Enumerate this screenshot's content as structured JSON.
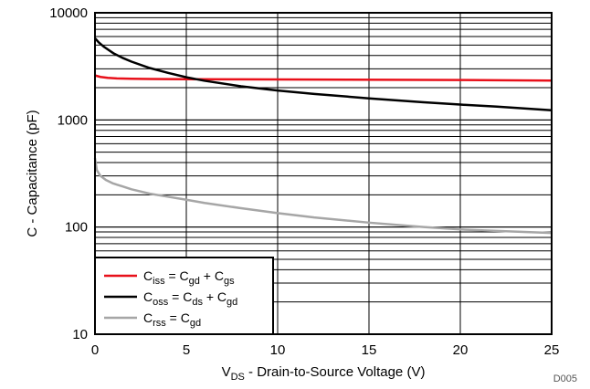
{
  "chart_data": {
    "type": "line",
    "figure_id": "D005",
    "xlabel": {
      "main": "V",
      "sub": "DS",
      "rest": " - Drain-to-Source Voltage (V)"
    },
    "ylabel": "C - Capacitance (pF)",
    "xlim": [
      0,
      25
    ],
    "ylim": [
      10,
      10000
    ],
    "yscale": "log",
    "grid": true,
    "legend_placement": "bottom-left",
    "x_ticks": [
      0,
      5,
      10,
      15,
      20,
      25
    ],
    "x_tick_labels": [
      "0",
      "5",
      "10",
      "15",
      "20",
      "25"
    ],
    "y_ticks": [
      10,
      100,
      1000,
      10000
    ],
    "y_tick_labels": [
      "10",
      "100",
      "1000",
      "10000"
    ],
    "series": [
      {
        "name": "Ciss = Cgd + Cgs",
        "legend_parts": [
          [
            "C",
            ""
          ],
          [
            "iss",
            "sub"
          ],
          [
            " = C",
            ""
          ],
          [
            "gd",
            "sub"
          ],
          [
            " + C",
            ""
          ],
          [
            "gs",
            "sub"
          ]
        ],
        "color": "#e8101a",
        "x": [
          0,
          0.3,
          0.7,
          1.2,
          2,
          3,
          5,
          8,
          12,
          16,
          20,
          25
        ],
        "y": [
          2600,
          2520,
          2470,
          2440,
          2420,
          2410,
          2400,
          2390,
          2380,
          2370,
          2360,
          2330
        ]
      },
      {
        "name": "Coss = Cds + Cgd",
        "legend_parts": [
          [
            "C",
            ""
          ],
          [
            "oss",
            "sub"
          ],
          [
            " = C",
            ""
          ],
          [
            "ds",
            "sub"
          ],
          [
            " + C",
            ""
          ],
          [
            "gd",
            "sub"
          ]
        ],
        "color": "#000000",
        "x": [
          0,
          0.2,
          0.5,
          1,
          1.5,
          2,
          3,
          4,
          5,
          6,
          8,
          10,
          12,
          15,
          18,
          20,
          22,
          25
        ],
        "y": [
          5800,
          5300,
          4800,
          4200,
          3800,
          3500,
          3050,
          2750,
          2500,
          2320,
          2060,
          1880,
          1750,
          1590,
          1460,
          1390,
          1330,
          1230
        ]
      },
      {
        "name": "Crss = Cgd",
        "legend_parts": [
          [
            "C",
            ""
          ],
          [
            "rss",
            "sub"
          ],
          [
            " = C",
            ""
          ],
          [
            "gd",
            "sub"
          ]
        ],
        "color": "#a6a6a6",
        "x": [
          0,
          0.1,
          0.3,
          0.6,
          1,
          1.5,
          2,
          3,
          4,
          5,
          6,
          8,
          10,
          12,
          15,
          18,
          20,
          22,
          25
        ],
        "y": [
          440,
          340,
          300,
          275,
          255,
          240,
          225,
          205,
          192,
          180,
          168,
          150,
          135,
          123,
          110,
          100,
          95,
          92,
          88
        ]
      }
    ]
  }
}
